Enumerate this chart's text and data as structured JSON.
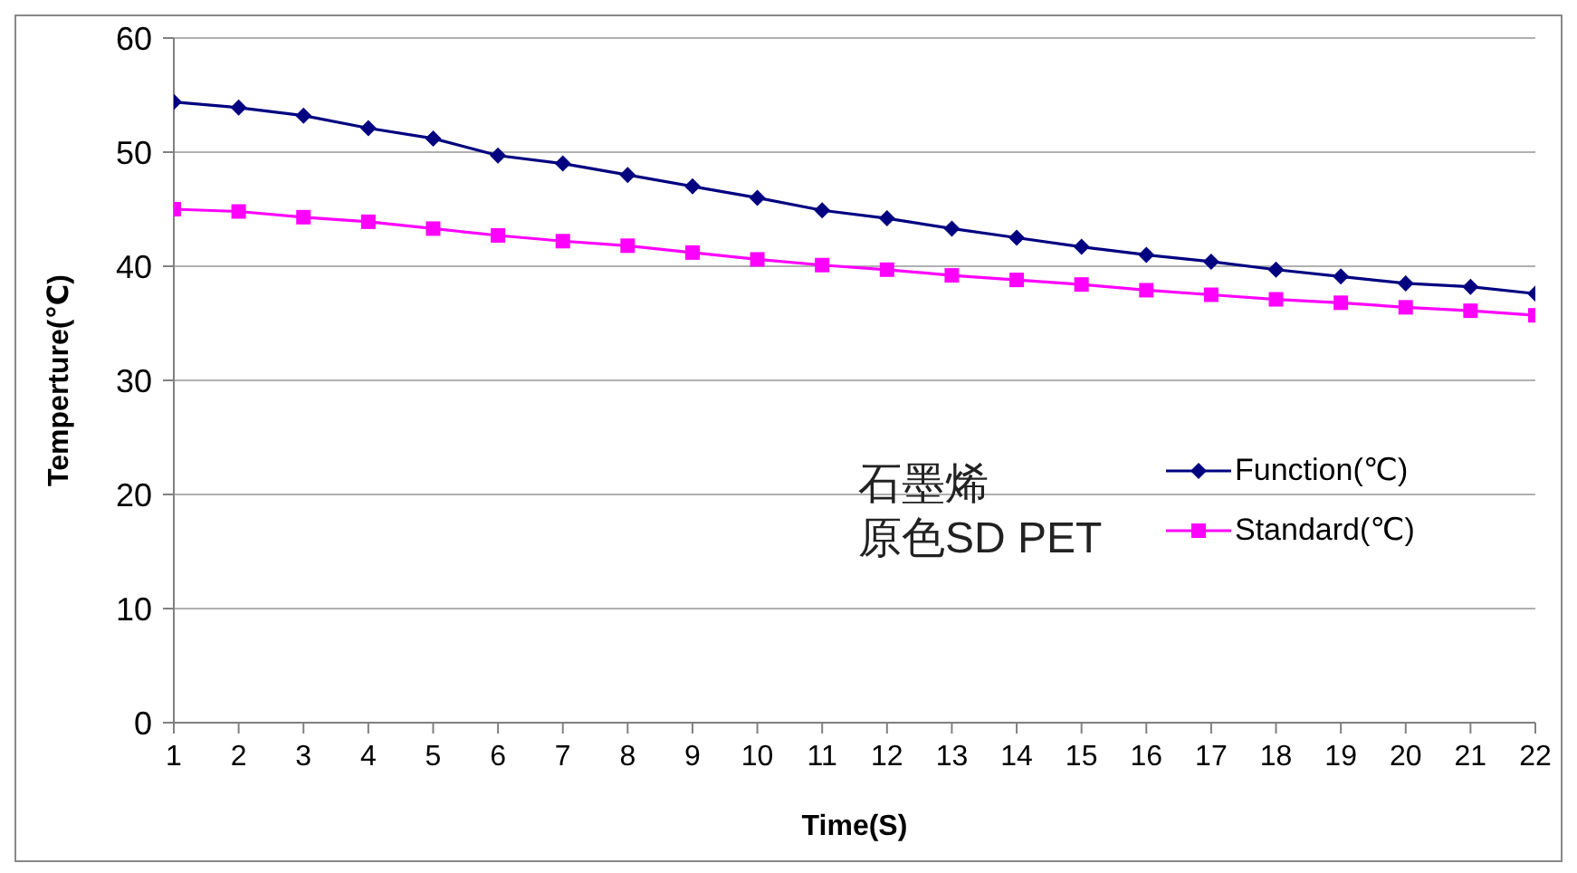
{
  "chart_data": {
    "type": "line",
    "xlabel": "Time(S)",
    "ylabel": "Temperture(℃)",
    "x": [
      1,
      2,
      3,
      4,
      5,
      6,
      7,
      8,
      9,
      10,
      11,
      12,
      13,
      14,
      15,
      16,
      17,
      18,
      19,
      20,
      21,
      22
    ],
    "series": [
      {
        "name": "Function(℃)",
        "color": "#000080",
        "marker": "diamond",
        "values": [
          54.4,
          53.9,
          53.2,
          52.1,
          51.2,
          49.7,
          49.0,
          48.0,
          47.0,
          46.0,
          44.9,
          44.2,
          43.3,
          42.5,
          41.7,
          41.0,
          40.4,
          39.7,
          39.1,
          38.5,
          38.2,
          37.6
        ]
      },
      {
        "name": "Standard(℃)",
        "color": "#ff00ff",
        "marker": "square",
        "values": [
          45.0,
          44.8,
          44.3,
          43.9,
          43.3,
          42.7,
          42.2,
          41.8,
          41.2,
          40.6,
          40.1,
          39.7,
          39.2,
          38.8,
          38.4,
          37.9,
          37.5,
          37.1,
          36.8,
          36.4,
          36.1,
          35.7
        ]
      }
    ],
    "xlim": [
      1,
      22
    ],
    "xticks": [
      1,
      2,
      3,
      4,
      5,
      6,
      7,
      8,
      9,
      10,
      11,
      12,
      13,
      14,
      15,
      16,
      17,
      18,
      19,
      20,
      21,
      22
    ],
    "ylim": [
      0,
      60
    ],
    "yticks": [
      0,
      10,
      20,
      30,
      40,
      50,
      60
    ],
    "grid": "y",
    "legend": "right",
    "line_style": "solid",
    "annotations": [
      "石墨烯",
      "原色SD PET"
    ]
  }
}
